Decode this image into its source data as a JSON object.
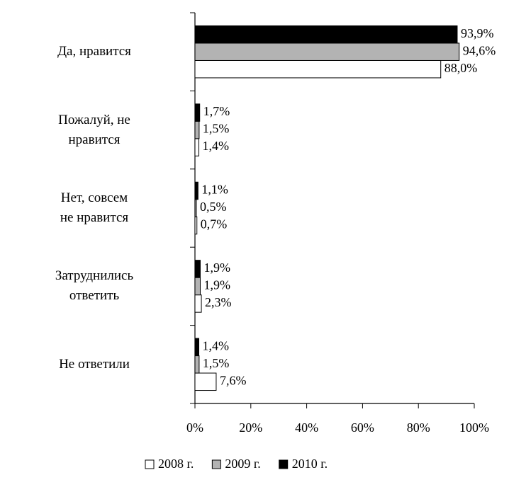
{
  "chart_data": {
    "type": "bar",
    "orientation": "horizontal",
    "categories": [
      "Да, нравится",
      "Пожалуй, не\nнравится",
      "Нет, совсем\nне нравится",
      "Затруднились\nответить",
      "Не ответили"
    ],
    "series": [
      {
        "name": "2008 г.",
        "color": "#ffffff",
        "values": [
          88.0,
          1.4,
          0.7,
          2.3,
          7.6
        ],
        "value_labels": [
          "88,0%",
          "1,4%",
          "0,7%",
          "2,3%",
          "7,6%"
        ]
      },
      {
        "name": "2009 г.",
        "color": "#b3b3b3",
        "values": [
          94.6,
          1.5,
          0.5,
          1.9,
          1.5
        ],
        "value_labels": [
          "94,6%",
          "1,5%",
          "0,5%",
          "1,9%",
          "1,5%"
        ]
      },
      {
        "name": "2010 г.",
        "color": "#000000",
        "values": [
          93.9,
          1.7,
          1.1,
          1.9,
          1.4
        ],
        "value_labels": [
          "93,9%",
          "1,7%",
          "1,1%",
          "1,9%",
          "1,4%"
        ]
      }
    ],
    "xlim": [
      0,
      100
    ],
    "xticks": [
      {
        "value": 0,
        "label": "0%"
      },
      {
        "value": 20,
        "label": "20%"
      },
      {
        "value": 40,
        "label": "40%"
      },
      {
        "value": 60,
        "label": "60%"
      },
      {
        "value": 80,
        "label": "80%"
      },
      {
        "value": 100,
        "label": "100%"
      }
    ]
  }
}
